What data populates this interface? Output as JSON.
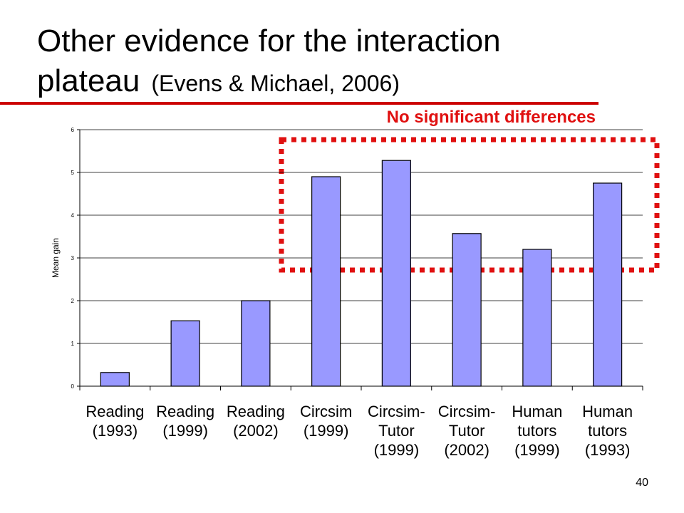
{
  "chart_data": {
    "type": "bar",
    "title": [
      "Other evidence for the interaction",
      "plateau"
    ],
    "subtitle": "(Evens & Michael, 2006)",
    "annotation": "No significant differences",
    "y_label": "Mean gain",
    "categories": [
      [
        "Reading",
        "(1993)"
      ],
      [
        "Reading",
        "(1999)"
      ],
      [
        "Reading",
        "(2002)"
      ],
      [
        "Circsim",
        "(1999)"
      ],
      [
        "Circsim-",
        "Tutor",
        "(1999)"
      ],
      [
        "Circsim-",
        "Tutor",
        "(2002)"
      ],
      [
        "Human",
        "tutors",
        "(1999)"
      ],
      [
        "Human",
        "tutors",
        "(1993)"
      ]
    ],
    "values": [
      0.32,
      1.53,
      2.0,
      4.9,
      5.28,
      3.57,
      3.2,
      4.75
    ],
    "color": "#9999ff",
    "ylim": [
      0,
      6
    ],
    "yticks": [
      0,
      1,
      2,
      3,
      4,
      5,
      6
    ],
    "grid": true,
    "page_number": "40"
  }
}
